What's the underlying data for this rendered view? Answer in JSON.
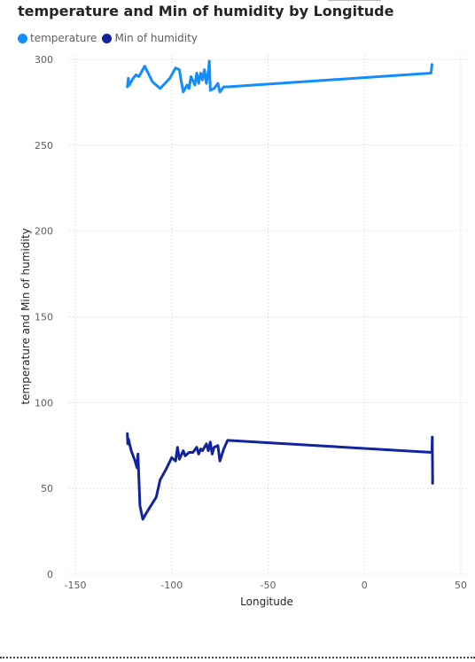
{
  "chart_data": {
    "type": "line",
    "title": "temperature and Min of humidity by Longitude",
    "xlabel": "Longitude",
    "ylabel": "temperature and Min of humidity",
    "xlim": [
      -153,
      52
    ],
    "ylim": [
      0,
      300
    ],
    "x_ticks": [
      -150,
      -100,
      -50,
      0,
      50
    ],
    "y_ticks": [
      0,
      50,
      100,
      150,
      200,
      250,
      300
    ],
    "grid": true,
    "legend_position": "top-left",
    "series": [
      {
        "name": "temperature",
        "color": "#118DFF",
        "points": [
          [
            -123,
            284
          ],
          [
            -122.5,
            289
          ],
          [
            -122,
            285
          ],
          [
            -120,
            289
          ],
          [
            -118.5,
            291
          ],
          [
            -117,
            290
          ],
          [
            -114,
            296
          ],
          [
            -110,
            287
          ],
          [
            -106,
            283
          ],
          [
            -101,
            289
          ],
          [
            -98,
            295
          ],
          [
            -96,
            294
          ],
          [
            -95,
            287
          ],
          [
            -94,
            281
          ],
          [
            -92,
            285
          ],
          [
            -91,
            283
          ],
          [
            -90,
            290
          ],
          [
            -88,
            285
          ],
          [
            -87,
            292
          ],
          [
            -86,
            286
          ],
          [
            -85,
            292
          ],
          [
            -84,
            288
          ],
          [
            -83,
            294
          ],
          [
            -82,
            286
          ],
          [
            -81,
            293
          ],
          [
            -80.5,
            299
          ],
          [
            -80,
            282
          ],
          [
            -78,
            283
          ],
          [
            -76,
            286
          ],
          [
            -75,
            281
          ],
          [
            -73,
            284
          ],
          [
            -71,
            284
          ],
          [
            34.5,
            292
          ],
          [
            34.8,
            294
          ],
          [
            35,
            297
          ]
        ]
      },
      {
        "name": "Min of humidity",
        "color": "#12239E",
        "points": [
          [
            -123,
            82
          ],
          [
            -122.8,
            76
          ],
          [
            -122.5,
            79
          ],
          [
            -121,
            72
          ],
          [
            -119,
            66
          ],
          [
            -118,
            62
          ],
          [
            -117.5,
            70
          ],
          [
            -116.5,
            40
          ],
          [
            -115,
            32
          ],
          [
            -113,
            36
          ],
          [
            -108,
            45
          ],
          [
            -106,
            55
          ],
          [
            -103,
            61
          ],
          [
            -100,
            68
          ],
          [
            -98,
            66
          ],
          [
            -97,
            74
          ],
          [
            -96,
            67
          ],
          [
            -94,
            72
          ],
          [
            -93,
            69
          ],
          [
            -91,
            71
          ],
          [
            -89,
            71
          ],
          [
            -87,
            74
          ],
          [
            -86,
            70
          ],
          [
            -85,
            73
          ],
          [
            -84,
            72
          ],
          [
            -82,
            76
          ],
          [
            -81,
            72
          ],
          [
            -80,
            77
          ],
          [
            -79,
            70
          ],
          [
            -78,
            74
          ],
          [
            -76,
            75
          ],
          [
            -75,
            66
          ],
          [
            -73,
            73
          ],
          [
            -71,
            78
          ],
          [
            35,
            71
          ],
          [
            35.2,
            80
          ],
          [
            35.4,
            53
          ]
        ]
      }
    ]
  }
}
